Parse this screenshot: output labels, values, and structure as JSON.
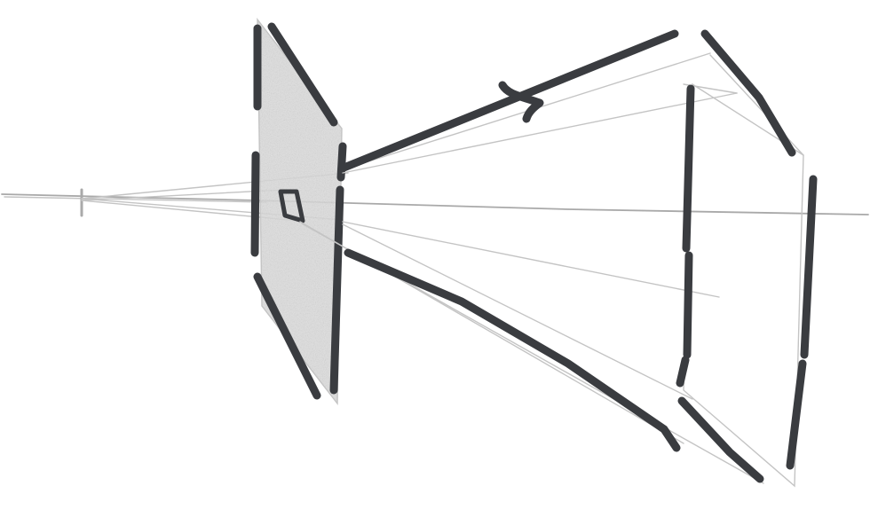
{
  "colors": {
    "background": "#ffffff",
    "marker": "#3a3c40",
    "pencil": "#c4c4c4",
    "shading": "#d6d6d6"
  },
  "figure": {
    "elements": [
      "optical-axis",
      "eye-point",
      "near-plane",
      "small-square",
      "projection-rays",
      "direction-arrow",
      "far-plane"
    ]
  }
}
